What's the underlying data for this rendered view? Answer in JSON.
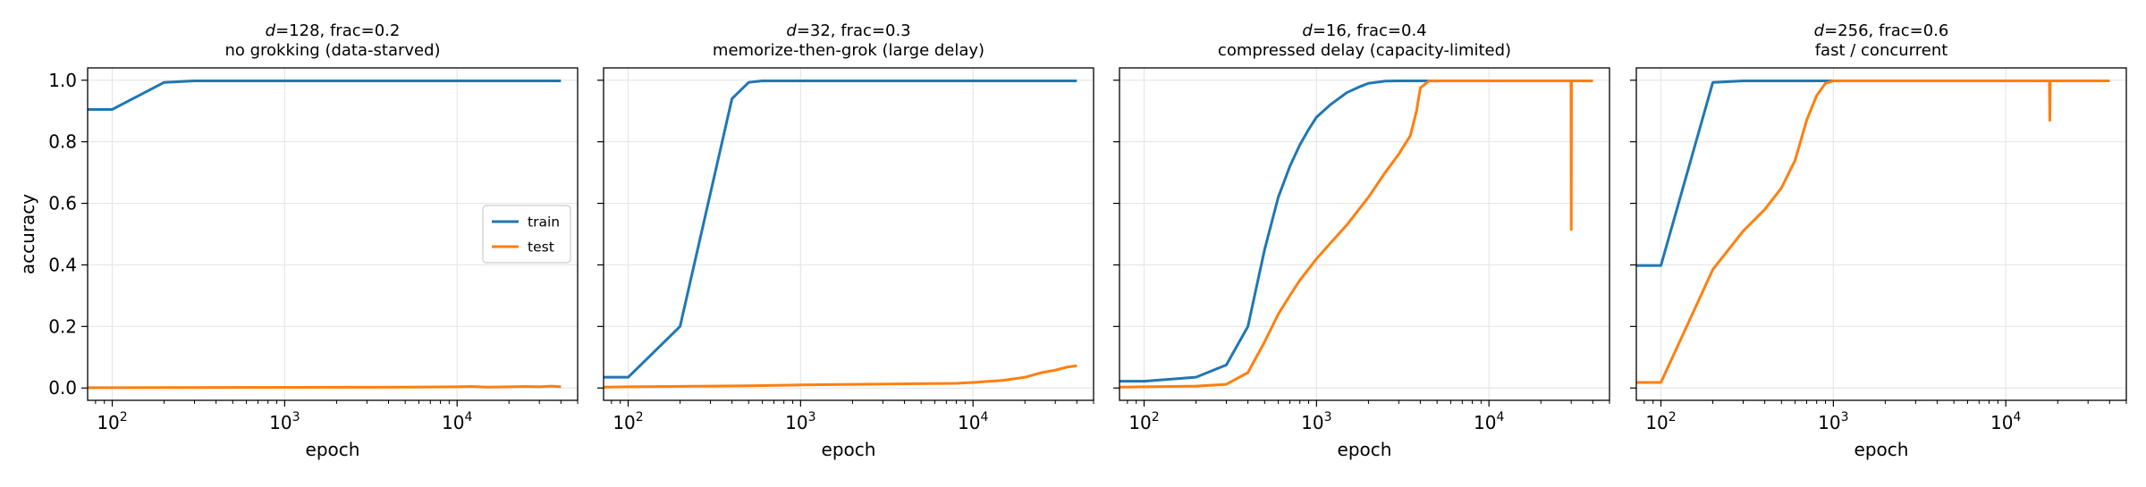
{
  "ylabel": "accuracy",
  "chart_data": [
    {
      "type": "line",
      "title": "d=128, frac=0.2",
      "title_var": "d",
      "title_rest": "=128, frac=0.2",
      "subtitle": "no grokking (data-starved)",
      "xlabel": "epoch",
      "ylabel": "accuracy",
      "xscale": "log",
      "xlim": [
        72,
        50000
      ],
      "ylim": [
        -0.04,
        1.04
      ],
      "grid": true,
      "legend": {
        "location": "center-right",
        "entries": [
          "train",
          "test"
        ]
      },
      "series": [
        {
          "name": "train",
          "color": "#1f77b4",
          "x": [
            72,
            100,
            200,
            300,
            400,
            500,
            1000,
            2000,
            5000,
            10000,
            20000,
            40000
          ],
          "y": [
            0.905,
            0.905,
            0.993,
            0.998,
            0.998,
            0.998,
            0.998,
            0.998,
            0.998,
            0.998,
            0.998,
            0.998
          ]
        },
        {
          "name": "test",
          "color": "#ff7f0e",
          "x": [
            72,
            100,
            1000,
            5000,
            10000,
            12000,
            15000,
            20000,
            25000,
            30000,
            35000,
            40000
          ],
          "y": [
            0.001,
            0.001,
            0.002,
            0.003,
            0.004,
            0.005,
            0.003,
            0.004,
            0.005,
            0.004,
            0.006,
            0.004
          ]
        }
      ]
    },
    {
      "type": "line",
      "title": "d=32, frac=0.3",
      "title_var": "d",
      "title_rest": "=32, frac=0.3",
      "subtitle": "memorize-then-grok (large delay)",
      "xlabel": "epoch",
      "xscale": "log",
      "xlim": [
        72,
        50000
      ],
      "ylim": [
        -0.04,
        1.04
      ],
      "grid": true,
      "series": [
        {
          "name": "train",
          "color": "#1f77b4",
          "x": [
            72,
            100,
            200,
            400,
            500,
            600,
            1000,
            2000,
            5000,
            10000,
            20000,
            40000
          ],
          "y": [
            0.035,
            0.035,
            0.2,
            0.94,
            0.993,
            0.998,
            0.998,
            0.998,
            0.998,
            0.998,
            0.998,
            0.998
          ]
        },
        {
          "name": "test",
          "color": "#ff7f0e",
          "x": [
            72,
            100,
            500,
            1000,
            2000,
            5000,
            8000,
            10000,
            15000,
            20000,
            25000,
            30000,
            35000,
            40000
          ],
          "y": [
            0.003,
            0.004,
            0.007,
            0.01,
            0.012,
            0.014,
            0.015,
            0.018,
            0.025,
            0.035,
            0.05,
            0.058,
            0.068,
            0.072
          ]
        }
      ]
    },
    {
      "type": "line",
      "title": "d=16, frac=0.4",
      "title_var": "d",
      "title_rest": "=16, frac=0.4",
      "subtitle": "compressed delay (capacity-limited)",
      "xlabel": "epoch",
      "xscale": "log",
      "xlim": [
        72,
        50000
      ],
      "ylim": [
        -0.04,
        1.04
      ],
      "grid": true,
      "series": [
        {
          "name": "train",
          "color": "#1f77b4",
          "x": [
            72,
            100,
            200,
            300,
            400,
            500,
            600,
            700,
            800,
            900,
            1000,
            1200,
            1500,
            1800,
            2000,
            2500,
            3000,
            4000,
            5000,
            10000,
            20000,
            40000
          ],
          "y": [
            0.022,
            0.022,
            0.035,
            0.075,
            0.2,
            0.45,
            0.62,
            0.72,
            0.79,
            0.84,
            0.88,
            0.92,
            0.96,
            0.98,
            0.99,
            0.997,
            0.998,
            0.998,
            0.998,
            0.998,
            0.998,
            0.998
          ]
        },
        {
          "name": "test",
          "color": "#ff7f0e",
          "x": [
            72,
            100,
            200,
            300,
            400,
            500,
            600,
            700,
            800,
            1000,
            1200,
            1500,
            2000,
            2500,
            3000,
            3500,
            3800,
            4000,
            4500,
            5000,
            10000,
            20000,
            29900,
            30000,
            30100,
            40000
          ],
          "y": [
            0.003,
            0.004,
            0.006,
            0.012,
            0.05,
            0.15,
            0.24,
            0.3,
            0.35,
            0.42,
            0.47,
            0.53,
            0.62,
            0.7,
            0.76,
            0.82,
            0.9,
            0.975,
            0.998,
            0.998,
            0.998,
            0.998,
            0.998,
            0.515,
            0.998,
            0.998
          ]
        }
      ]
    },
    {
      "type": "line",
      "title": "d=256, frac=0.6",
      "title_var": "d",
      "title_rest": "=256, frac=0.6",
      "subtitle": "fast / concurrent",
      "xlabel": "epoch",
      "xscale": "log",
      "xlim": [
        72,
        50000
      ],
      "ylim": [
        -0.04,
        1.04
      ],
      "grid": true,
      "series": [
        {
          "name": "train",
          "color": "#1f77b4",
          "x": [
            72,
            100,
            200,
            300,
            500,
            1000,
            2000,
            5000,
            10000,
            20000,
            40000
          ],
          "y": [
            0.398,
            0.398,
            0.993,
            0.998,
            0.998,
            0.998,
            0.998,
            0.998,
            0.998,
            0.998,
            0.998
          ]
        },
        {
          "name": "test",
          "color": "#ff7f0e",
          "x": [
            72,
            100,
            200,
            300,
            400,
            500,
            600,
            700,
            800,
            900,
            1000,
            2000,
            5000,
            10000,
            17900,
            18000,
            18100,
            40000
          ],
          "y": [
            0.018,
            0.018,
            0.385,
            0.51,
            0.58,
            0.65,
            0.74,
            0.87,
            0.95,
            0.99,
            0.998,
            0.998,
            0.998,
            0.998,
            0.998,
            0.87,
            0.998,
            0.998
          ]
        }
      ]
    }
  ],
  "shared": {
    "yticks": [
      0.0,
      0.2,
      0.4,
      0.6,
      0.8,
      1.0
    ],
    "ytick_labels": [
      "0.0",
      "0.2",
      "0.4",
      "0.6",
      "0.8",
      "1.0"
    ],
    "xticks_major": [
      100,
      1000,
      10000
    ],
    "xtick_base": "10",
    "xtick_exponents": [
      "2",
      "3",
      "4"
    ]
  }
}
